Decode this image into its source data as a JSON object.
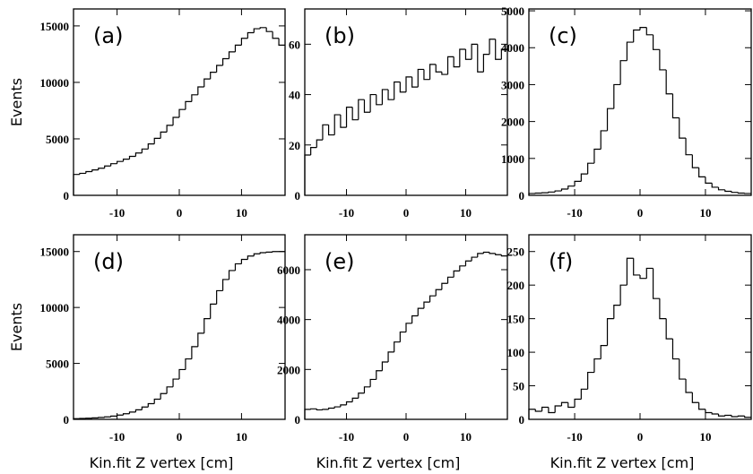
{
  "chart_data": [
    {
      "type": "histogram",
      "annotation": "(a)",
      "ylabel": "Events",
      "color": "#000000",
      "bins": [
        -17,
        -16,
        -15,
        -14,
        -13,
        -12,
        -11,
        -10,
        -9,
        -8,
        -7,
        -6,
        -5,
        -4,
        -3,
        -2,
        -1,
        0,
        1,
        2,
        3,
        4,
        5,
        6,
        7,
        8,
        9,
        10,
        11,
        12,
        13,
        14,
        15,
        16,
        17
      ],
      "values": [
        1850,
        1950,
        2100,
        2250,
        2400,
        2600,
        2800,
        3000,
        3200,
        3450,
        3750,
        4100,
        4550,
        5050,
        5600,
        6200,
        6900,
        7600,
        8300,
        8900,
        9600,
        10300,
        10900,
        11500,
        12100,
        12700,
        13300,
        13900,
        14400,
        14750,
        14850,
        14500,
        13900,
        13300
      ],
      "xlim": [
        -17,
        17
      ],
      "xticks": [
        -10,
        0,
        10
      ],
      "ylim": [
        0,
        16500
      ],
      "yticks": [
        0,
        5000,
        10000,
        15000
      ]
    },
    {
      "type": "histogram",
      "annotation": "(b)",
      "color": "#000000",
      "bins": [
        -17,
        -16,
        -15,
        -14,
        -13,
        -12,
        -11,
        -10,
        -9,
        -8,
        -7,
        -6,
        -5,
        -4,
        -3,
        -2,
        -1,
        0,
        1,
        2,
        3,
        4,
        5,
        6,
        7,
        8,
        9,
        10,
        11,
        12,
        13,
        14,
        15,
        16,
        17
      ],
      "values": [
        16,
        19,
        22,
        28,
        24,
        32,
        27,
        35,
        30,
        38,
        33,
        40,
        36,
        42,
        38,
        45,
        41,
        47,
        43,
        50,
        46,
        52,
        49,
        48,
        55,
        51,
        58,
        54,
        60,
        49,
        56,
        62,
        54,
        58
      ],
      "xlim": [
        -17,
        17
      ],
      "xticks": [
        -10,
        0,
        10
      ],
      "ylim": [
        0,
        74
      ],
      "yticks": [
        0,
        20,
        40,
        60
      ]
    },
    {
      "type": "histogram",
      "annotation": "(c)",
      "color": "#000000",
      "bins": [
        -17,
        -16,
        -15,
        -14,
        -13,
        -12,
        -11,
        -10,
        -9,
        -8,
        -7,
        -6,
        -5,
        -4,
        -3,
        -2,
        -1,
        0,
        1,
        2,
        3,
        4,
        5,
        6,
        7,
        8,
        9,
        10,
        11,
        12,
        13,
        14,
        15,
        16,
        17
      ],
      "values": [
        50,
        60,
        70,
        90,
        120,
        170,
        250,
        380,
        580,
        870,
        1250,
        1750,
        2350,
        3000,
        3650,
        4150,
        4480,
        4550,
        4350,
        3950,
        3400,
        2750,
        2100,
        1550,
        1100,
        750,
        500,
        330,
        220,
        150,
        110,
        80,
        60,
        50
      ],
      "xlim": [
        -17,
        17
      ],
      "xticks": [
        -10,
        0,
        10
      ],
      "ylim": [
        0,
        5050
      ],
      "yticks": [
        0,
        1000,
        2000,
        3000,
        4000,
        5000
      ]
    },
    {
      "type": "histogram",
      "annotation": "(d)",
      "ylabel": "Events",
      "xlabel": "Kin.fit Z vertex [cm]",
      "color": "#000000",
      "bins": [
        -17,
        -16,
        -15,
        -14,
        -13,
        -12,
        -11,
        -10,
        -9,
        -8,
        -7,
        -6,
        -5,
        -4,
        -3,
        -2,
        -1,
        0,
        1,
        2,
        3,
        4,
        5,
        6,
        7,
        8,
        9,
        10,
        11,
        12,
        13,
        14,
        15,
        16,
        17
      ],
      "values": [
        60,
        80,
        100,
        130,
        170,
        220,
        290,
        380,
        500,
        650,
        850,
        1100,
        1400,
        1800,
        2300,
        2900,
        3600,
        4450,
        5400,
        6500,
        7700,
        9000,
        10300,
        11500,
        12500,
        13300,
        13900,
        14300,
        14600,
        14800,
        14900,
        14950,
        15000,
        15000
      ],
      "xlim": [
        -17,
        17
      ],
      "xticks": [
        -10,
        0,
        10
      ],
      "ylim": [
        0,
        16500
      ],
      "yticks": [
        0,
        5000,
        10000,
        15000
      ]
    },
    {
      "type": "histogram",
      "annotation": "(e)",
      "xlabel": "Kin.fit Z vertex [cm]",
      "color": "#000000",
      "bins": [
        -17,
        -16,
        -15,
        -14,
        -13,
        -12,
        -11,
        -10,
        -9,
        -8,
        -7,
        -6,
        -5,
        -4,
        -3,
        -2,
        -1,
        0,
        1,
        2,
        3,
        4,
        5,
        6,
        7,
        8,
        9,
        10,
        11,
        12,
        13,
        14,
        15,
        16,
        17
      ],
      "values": [
        400,
        420,
        380,
        400,
        450,
        500,
        580,
        700,
        850,
        1050,
        1300,
        1600,
        1950,
        2300,
        2700,
        3100,
        3500,
        3850,
        4150,
        4450,
        4700,
        4950,
        5200,
        5450,
        5700,
        5950,
        6150,
        6350,
        6500,
        6650,
        6700,
        6650,
        6600,
        6550
      ],
      "xlim": [
        -17,
        17
      ],
      "xticks": [
        -10,
        0,
        10
      ],
      "ylim": [
        0,
        7400
      ],
      "yticks": [
        0,
        2000,
        4000,
        6000
      ]
    },
    {
      "type": "histogram",
      "annotation": "(f)",
      "xlabel": "Kin.fit Z vertex [cm]",
      "color": "#000000",
      "bins": [
        -17,
        -16,
        -15,
        -14,
        -13,
        -12,
        -11,
        -10,
        -9,
        -8,
        -7,
        -6,
        -5,
        -4,
        -3,
        -2,
        -1,
        0,
        1,
        2,
        3,
        4,
        5,
        6,
        7,
        8,
        9,
        10,
        11,
        12,
        13,
        14,
        15,
        16,
        17
      ],
      "values": [
        15,
        12,
        18,
        10,
        20,
        25,
        18,
        30,
        45,
        70,
        90,
        110,
        150,
        170,
        200,
        240,
        215,
        210,
        225,
        180,
        150,
        120,
        90,
        60,
        40,
        25,
        15,
        10,
        8,
        5,
        6,
        4,
        5,
        3
      ],
      "xlim": [
        -17,
        17
      ],
      "xticks": [
        -10,
        0,
        10
      ],
      "ylim": [
        0,
        275
      ],
      "yticks": [
        0,
        50,
        100,
        150,
        200,
        250
      ]
    }
  ]
}
